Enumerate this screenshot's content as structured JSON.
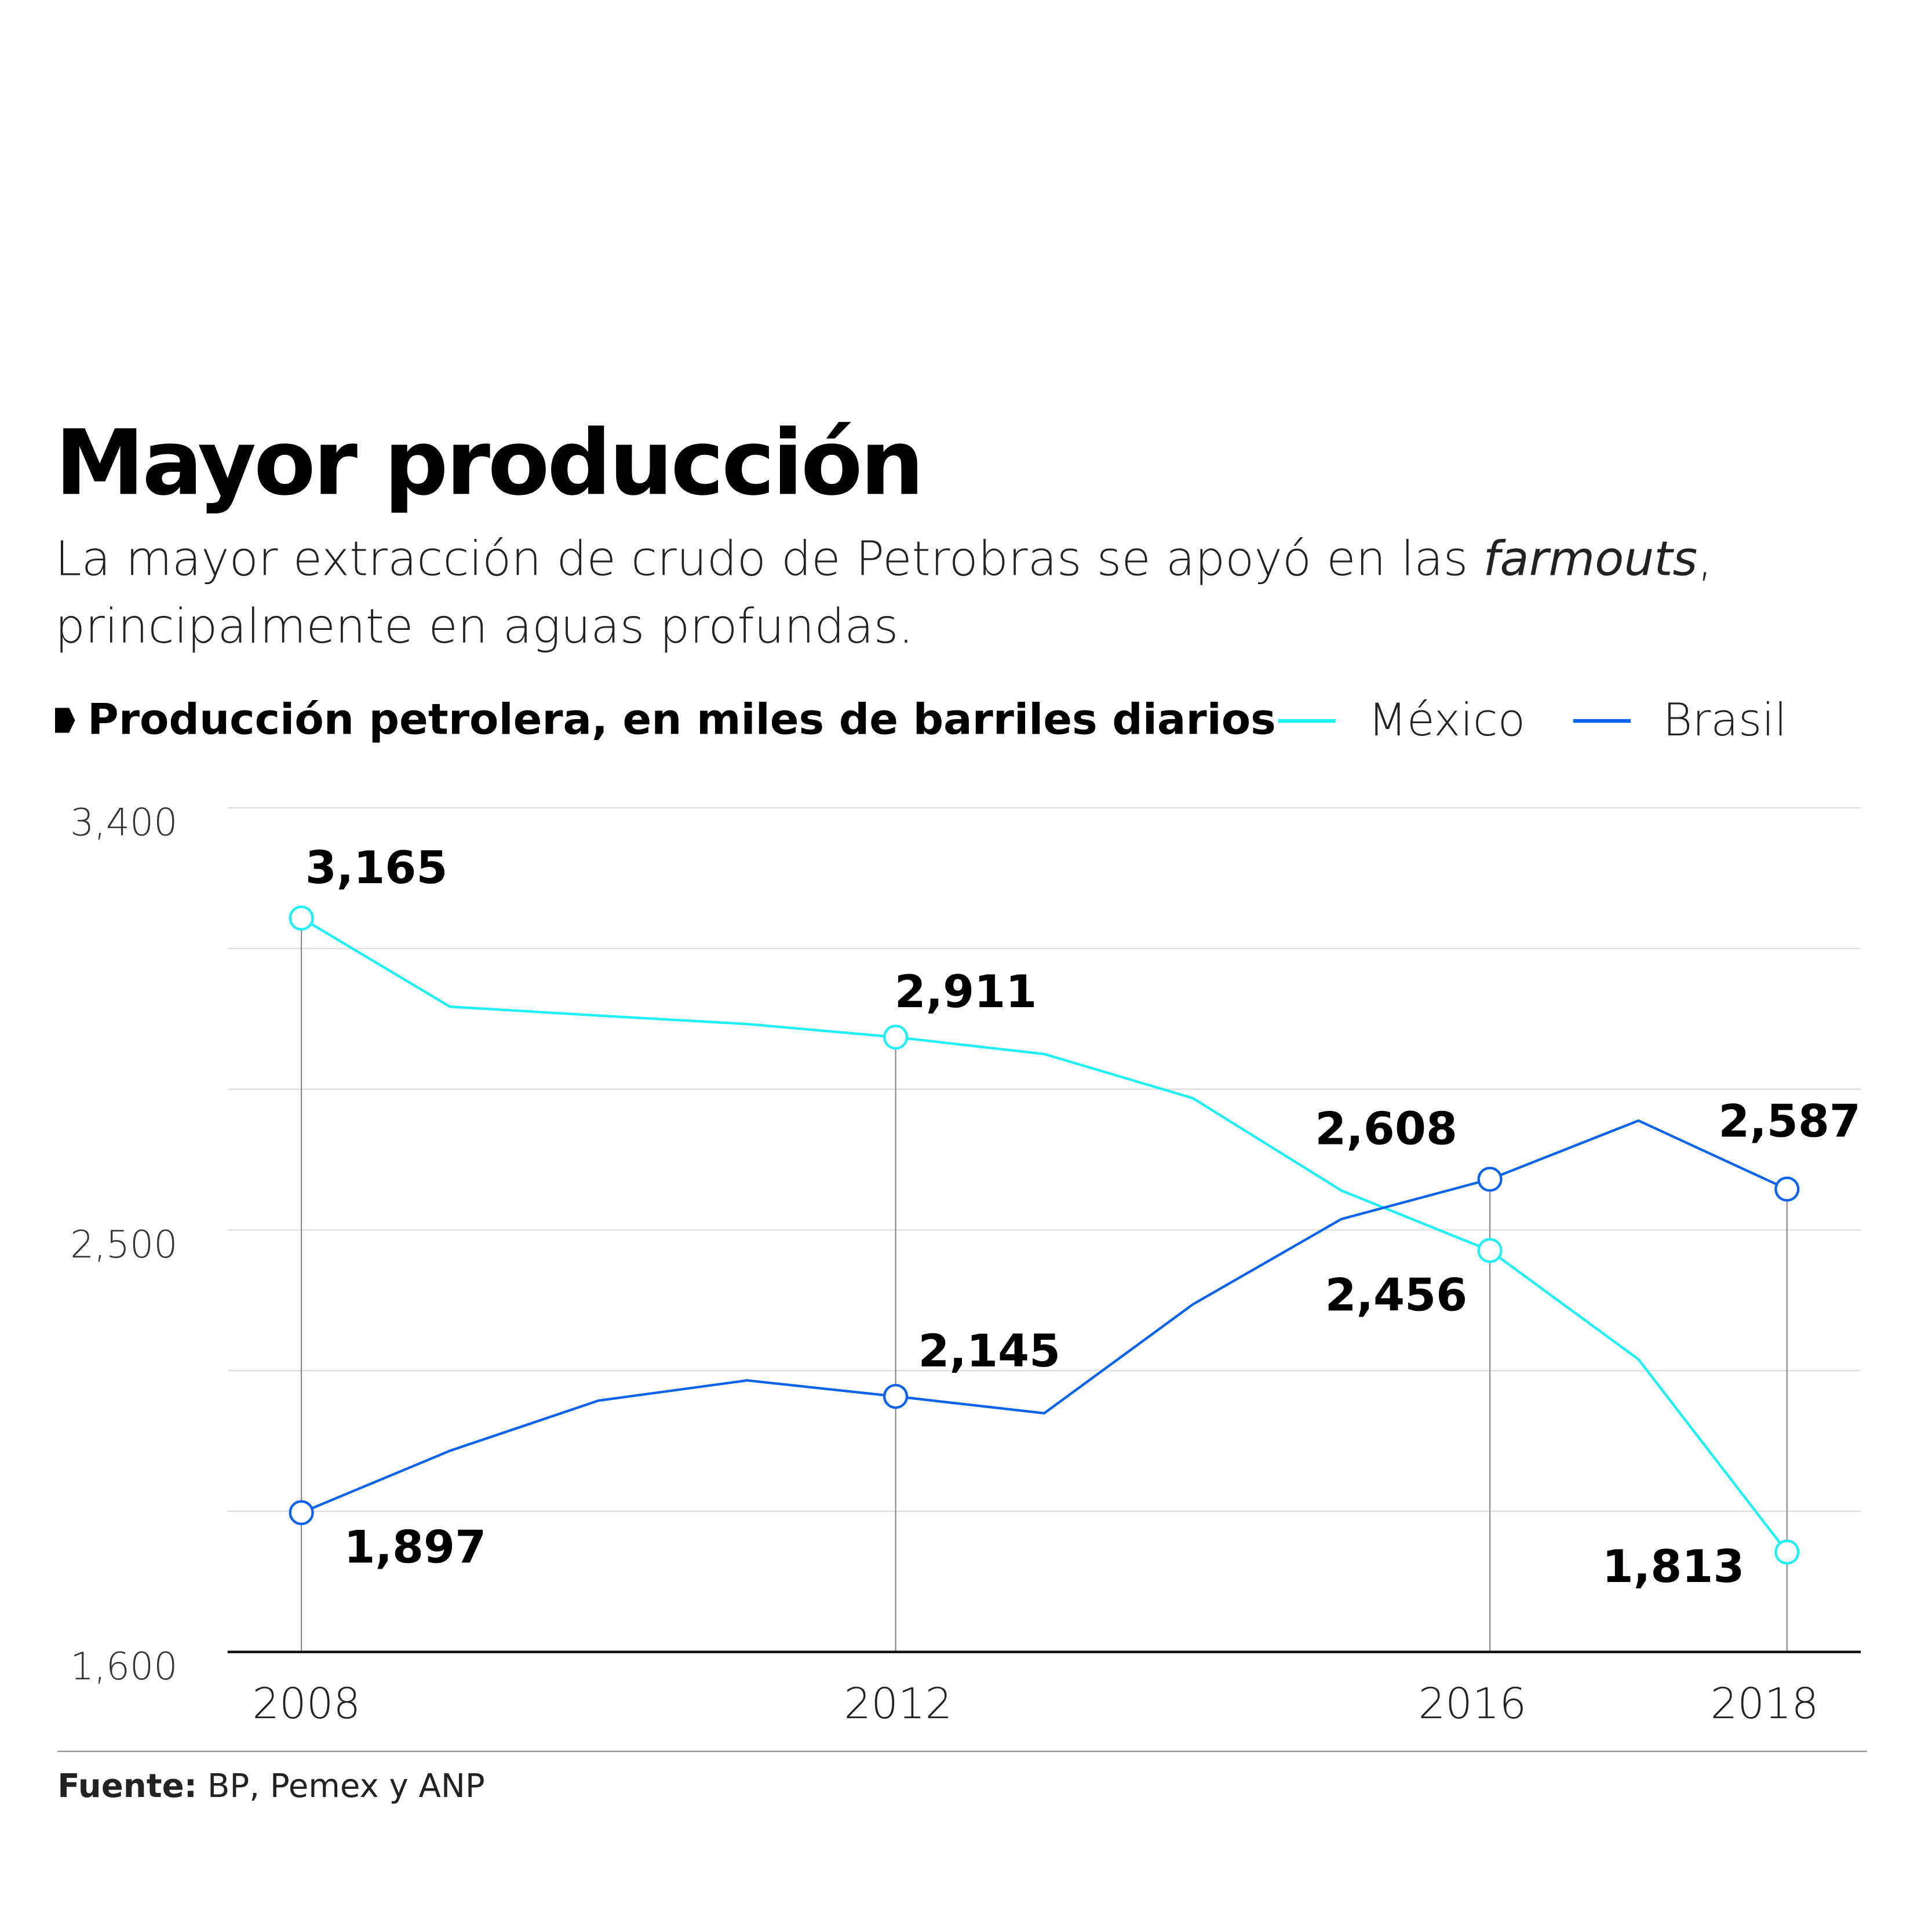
{
  "title": "Mayor producción",
  "subtitle": {
    "before": "La mayor extracción de crudo de Petrobras se apoyó en las ",
    "italic": "farmouts",
    "after": ", principalmente en aguas profundas."
  },
  "source": {
    "label": "Fuente:",
    "text": " BP, Pemex y ANP"
  },
  "chart_data": {
    "type": "line",
    "title": "Producción petrolera,  en miles de barriles diarios",
    "x": [
      2008,
      2009,
      2010,
      2011,
      2012,
      2013,
      2014,
      2015,
      2016,
      2017,
      2018
    ],
    "x_tick_labels": [
      "2008",
      "2012",
      "2016",
      "2018"
    ],
    "ylim": [
      1600,
      3400
    ],
    "y_tick_labels": [
      "3,400",
      "2,500",
      "1,600"
    ],
    "y_grid": [
      1600,
      1900,
      2200,
      2500,
      2800,
      3100,
      3400
    ],
    "grid": true,
    "legend": "top-right",
    "series": [
      {
        "name": "México",
        "color": "#1ef0f5",
        "values": [
          3165,
          2976,
          2957,
          2939,
          2911,
          2875,
          2781,
          2584,
          2456,
          2224,
          1813
        ],
        "labels": {
          "2008": "3,165",
          "2012": "2,911",
          "2016": "2,456",
          "2018": "1,813"
        }
      },
      {
        "name": "Brasil",
        "color": "#0b63f0",
        "values": [
          1897,
          2029,
          2136,
          2179,
          2145,
          2109,
          2341,
          2523,
          2608,
          2733,
          2587
        ],
        "labels": {
          "2008": "1,897",
          "2012": "2,145",
          "2016": "2,608",
          "2018": "2,587"
        }
      }
    ]
  }
}
